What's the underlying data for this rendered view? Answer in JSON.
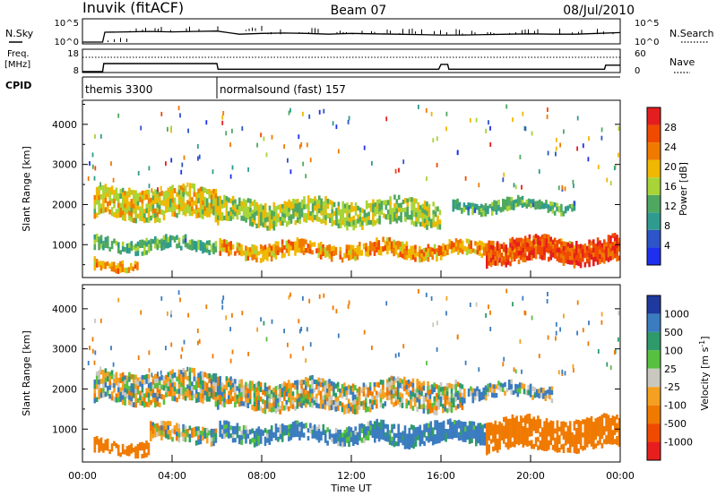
{
  "header": {
    "station": "Inuvik (fitACF)",
    "beam": "Beam 07",
    "date": "08/Jul/2010"
  },
  "noise_panel": {
    "left_label": "N.Sky",
    "right_label": "N.Search",
    "left_ticks": [
      "10^5",
      "10^0"
    ],
    "right_ticks": [
      "10^5",
      "10^0"
    ]
  },
  "freq_panel": {
    "left_label_1": "Freq.",
    "left_label_2": "[MHz]",
    "right_label": "Nave",
    "left_ticks": [
      "18",
      "8"
    ],
    "right_ticks": [
      "60",
      "0"
    ]
  },
  "cpid_panel": {
    "label": "CPID",
    "modes": [
      {
        "name": "themis 3300",
        "start_hour": 0
      },
      {
        "name": "normalsound (fast) 157",
        "start_hour": 6
      }
    ]
  },
  "colors": {
    "power_scale": [
      "#1e2ff0",
      "#2d54c8",
      "#2f9b8e",
      "#4fa860",
      "#a8d438",
      "#f0b800",
      "#f07a00",
      "#f04a00",
      "#e41e1e"
    ],
    "velocity_scale": [
      "#1e3a9e",
      "#3a7cbf",
      "#2f9b6a",
      "#58c040",
      "#c8c8c0",
      "#f5a020",
      "#f07a00",
      "#f04a00",
      "#e81e1e"
    ]
  },
  "chart_data": [
    {
      "type": "line",
      "title": "N.Sky / N.Search",
      "x_unit": "hour UT",
      "xlim": [
        0,
        24
      ],
      "ylabel_left": "N.Sky",
      "ylabel_right": "N.Search",
      "series": [
        {
          "name": "N.Sky",
          "x": [
            0,
            0.9,
            1,
            2,
            3,
            4,
            5,
            6,
            7,
            8,
            9,
            10,
            11,
            12,
            13,
            14,
            15,
            16,
            17,
            18,
            19,
            20,
            21,
            22,
            23,
            24
          ],
          "values": [
            0,
            0,
            2.5,
            2.6,
            2.7,
            2.6,
            2.7,
            2.8,
            2.0,
            2.2,
            2.3,
            2.2,
            2.0,
            2.2,
            2.1,
            2.0,
            1.9,
            1.8,
            1.8,
            1.9,
            2.0,
            2.1,
            2.0,
            2.0,
            2.2,
            2.4
          ]
        }
      ]
    },
    {
      "type": "line",
      "title": "Freq. / Nave",
      "x_unit": "hour UT",
      "xlim": [
        0,
        24
      ],
      "series": [
        {
          "name": "Freq. [MHz]",
          "x": [
            0,
            0.9,
            0.95,
            6,
            6.05,
            15.9,
            16,
            16.3,
            16.35,
            23.3,
            23.35,
            24
          ],
          "values": [
            8,
            8,
            13,
            13,
            9.5,
            9.5,
            12.5,
            12.5,
            9.5,
            9.5,
            12,
            12
          ]
        },
        {
          "name": "Nave",
          "x": [
            0,
            24
          ],
          "values": [
            40,
            40
          ]
        }
      ]
    },
    {
      "type": "heatmap",
      "quantity": "Power",
      "xlabel": "Time UT",
      "ylabel": "Slant Range [km]",
      "xlim": [
        0,
        24
      ],
      "ylim": [
        180,
        4600
      ],
      "x_ticks": [
        "00:00",
        "04:00",
        "08:00",
        "12:00",
        "16:00",
        "20:00",
        "00:00"
      ],
      "y_ticks": [
        1000,
        2000,
        3000,
        4000
      ],
      "colorbar": {
        "label": "Power [dB]",
        "ticks": [
          4,
          8,
          12,
          16,
          20,
          24,
          28
        ],
        "range": [
          0,
          32
        ]
      },
      "echo_bands": [
        {
          "t0": 0.5,
          "t1": 6,
          "r0": 1650,
          "r1": 2400,
          "level": 18
        },
        {
          "t0": 0.5,
          "t1": 6,
          "r0": 850,
          "r1": 1150,
          "level": 12
        },
        {
          "t0": 0.5,
          "t1": 2.5,
          "r0": 400,
          "r1": 650,
          "level": 22
        },
        {
          "t0": 6,
          "t1": 16,
          "r0": 1500,
          "r1": 2100,
          "level": 16
        },
        {
          "t0": 6,
          "t1": 24,
          "r0": 700,
          "r1": 1050,
          "level": 22
        },
        {
          "t0": 18,
          "t1": 24,
          "r0": 550,
          "r1": 1150,
          "level": 27
        },
        {
          "t0": 16.5,
          "t1": 22,
          "r0": 1850,
          "r1": 2100,
          "level": 12
        }
      ]
    },
    {
      "type": "heatmap",
      "quantity": "Velocity",
      "xlabel": "Time UT",
      "ylabel": "Slant Range [km]",
      "xlim": [
        0,
        24
      ],
      "ylim": [
        180,
        4600
      ],
      "x_ticks": [
        "00:00",
        "04:00",
        "08:00",
        "12:00",
        "16:00",
        "20:00",
        "00:00"
      ],
      "y_ticks": [
        1000,
        2000,
        3000,
        4000
      ],
      "colorbar": {
        "label": "Velocity [m s^-1]",
        "ticks": [
          "1000",
          "500",
          "100",
          "25",
          "-25",
          "-100",
          "-500",
          "-1000"
        ]
      },
      "echo_bands": [
        {
          "t0": 0.5,
          "t1": 6,
          "r0": 1650,
          "r1": 2400,
          "level": 0
        },
        {
          "t0": 0.5,
          "t1": 3,
          "r0": 400,
          "r1": 700,
          "level": -300
        },
        {
          "t0": 3,
          "t1": 6,
          "r0": 700,
          "r1": 1100,
          "level": 0
        },
        {
          "t0": 6,
          "t1": 17,
          "r0": 1500,
          "r1": 2200,
          "level": 0
        },
        {
          "t0": 6,
          "t1": 13,
          "r0": 700,
          "r1": 1100,
          "level": 150
        },
        {
          "t0": 13,
          "t1": 18,
          "r0": 650,
          "r1": 1150,
          "level": 200
        },
        {
          "t0": 18,
          "t1": 24,
          "r0": 500,
          "r1": 1250,
          "level": -300
        },
        {
          "t0": 17,
          "t1": 21,
          "r0": 1800,
          "r1": 2100,
          "level": 80
        }
      ]
    }
  ],
  "time_label": "Time UT",
  "slant_label": "Slant Range [km]",
  "power_label": "Power [dB]",
  "velocity_label": "Velocity [m s",
  "velocity_sup": "-1",
  "velocity_close": "]"
}
